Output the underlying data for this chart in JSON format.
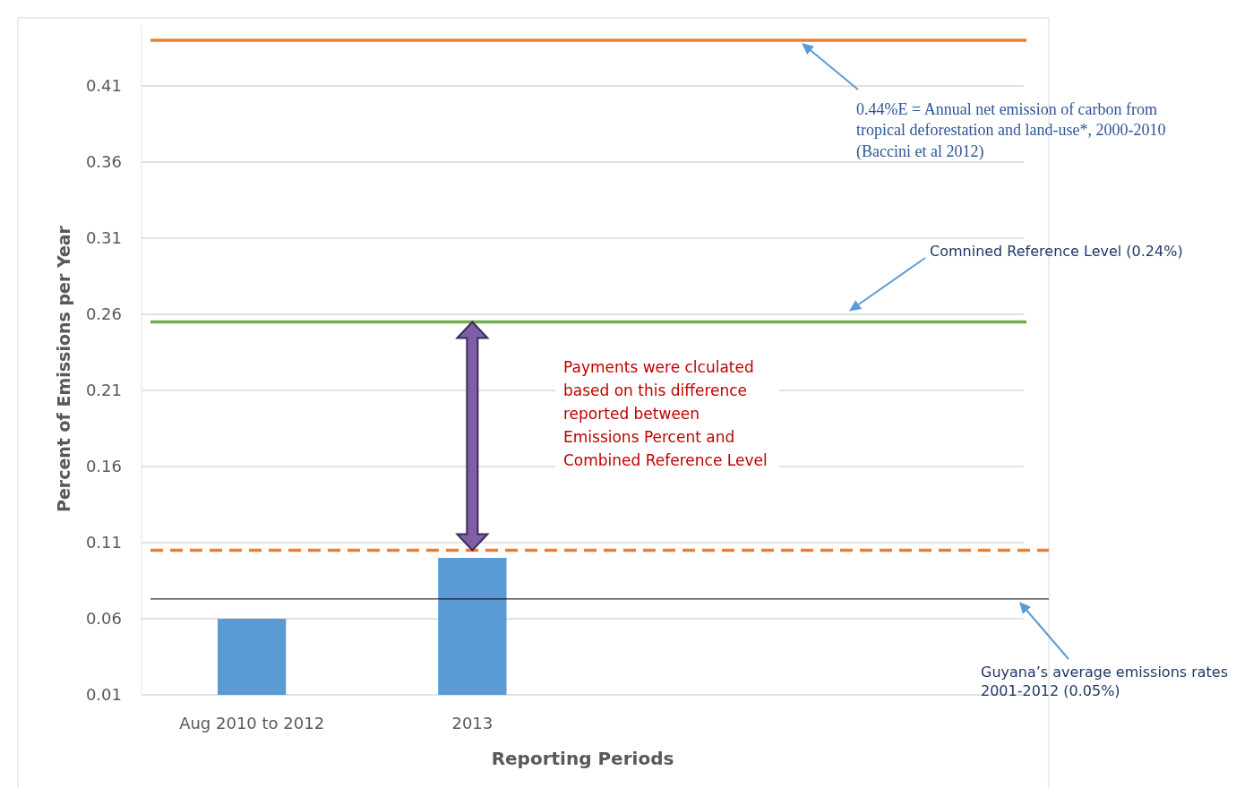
{
  "chart_data": {
    "type": "bar",
    "categories": [
      "Aug 2010 to 2012",
      "2013",
      null,
      null
    ],
    "values": [
      0.06,
      0.1,
      null,
      null
    ],
    "color": "#5b9bd5",
    "xlabel": "Reporting Periods",
    "ylabel": "Percent of Emissions per Year",
    "ylim": [
      0.01,
      0.45
    ],
    "yticks": [
      0.01,
      0.06,
      0.11,
      0.16,
      0.21,
      0.26,
      0.31,
      0.36,
      0.41
    ],
    "grid": "y",
    "ref_lines": [
      {
        "axis": "y",
        "value": 0.44,
        "color": "#ed7d31",
        "line_style": "solid"
      },
      {
        "axis": "y",
        "value": 0.255,
        "color": "#70ad47",
        "line_style": "solid"
      },
      {
        "axis": "y",
        "value": 0.105,
        "color": "#ed7d31",
        "line_style": "dashed"
      },
      {
        "axis": "y",
        "value": 0.073,
        "color": "#000000",
        "line_style": "solid"
      }
    ],
    "annotations": [
      "0.44%E = Annual net emission of carbon from tropical deforestation and land-use*, 2000-2010 (Baccini et al 2012)",
      "Comnined Reference Level (0.24%)",
      "Guyana’s average emissions rates 2001-2012 (0.05%)",
      "Payments were clculated based on this difference reported between Emissions Percent and Combined Reference Level"
    ]
  }
}
